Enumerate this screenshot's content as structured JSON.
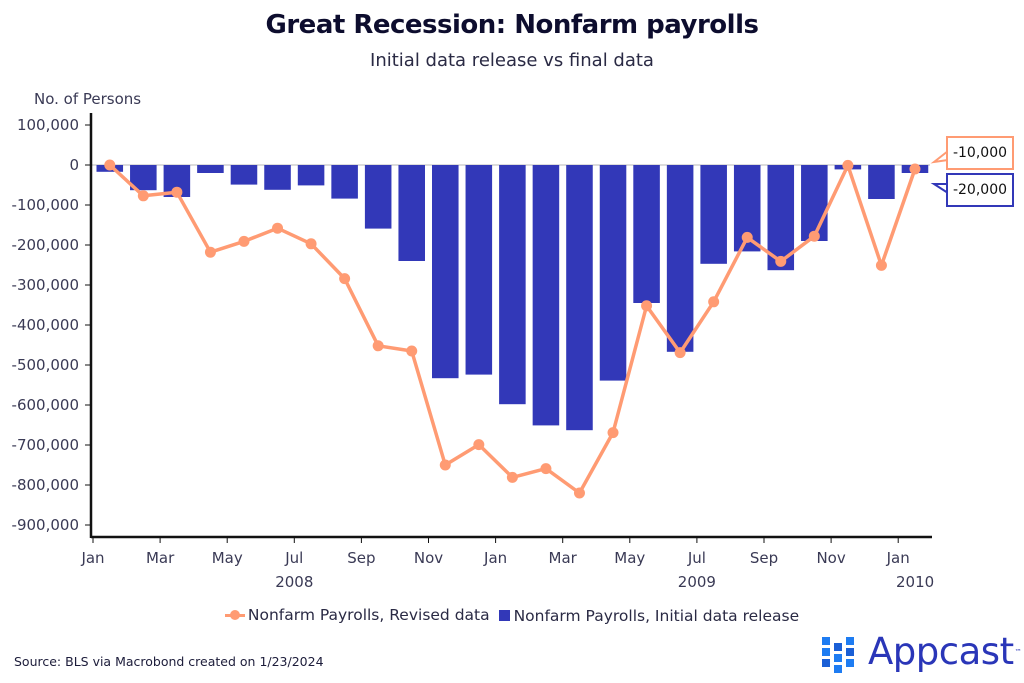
{
  "chart_data": {
    "type": "bar+line",
    "title": "Great Recession: Nonfarm payrolls",
    "subtitle": "Initial data release vs final data",
    "ylabel": "No. of Persons",
    "xlabel": "",
    "ylim": [
      -930000,
      120000
    ],
    "y_ticks": [
      100000,
      0,
      -100000,
      -200000,
      -300000,
      -400000,
      -500000,
      -600000,
      -700000,
      -800000,
      -900000
    ],
    "y_tick_labels": [
      "100,000",
      "0",
      "-100,000",
      "-200,000",
      "-300,000",
      "-400,000",
      "-500,000",
      "-600,000",
      "-700,000",
      "-800,000",
      "-900,000"
    ],
    "categories": [
      "Jan 2008",
      "Feb 2008",
      "Mar 2008",
      "Apr 2008",
      "May 2008",
      "Jun 2008",
      "Jul 2008",
      "Aug 2008",
      "Sep 2008",
      "Oct 2008",
      "Nov 2008",
      "Dec 2008",
      "Jan 2009",
      "Feb 2009",
      "Mar 2009",
      "Apr 2009",
      "May 2009",
      "Jun 2009",
      "Jul 2009",
      "Aug 2009",
      "Sep 2009",
      "Oct 2009",
      "Nov 2009",
      "Dec 2009",
      "Jan 2010"
    ],
    "x_tick_labels": [
      {
        "month_index": 0,
        "label": "Jan",
        "year": ""
      },
      {
        "month_index": 2,
        "label": "Mar",
        "year": ""
      },
      {
        "month_index": 4,
        "label": "May",
        "year": ""
      },
      {
        "month_index": 6,
        "label": "Jul",
        "year": "2008"
      },
      {
        "month_index": 8,
        "label": "Sep",
        "year": ""
      },
      {
        "month_index": 10,
        "label": "Nov",
        "year": ""
      },
      {
        "month_index": 12,
        "label": "Jan",
        "year": ""
      },
      {
        "month_index": 14,
        "label": "Mar",
        "year": ""
      },
      {
        "month_index": 16,
        "label": "May",
        "year": ""
      },
      {
        "month_index": 18,
        "label": "Jul",
        "year": "2009"
      },
      {
        "month_index": 20,
        "label": "Sep",
        "year": ""
      },
      {
        "month_index": 22,
        "label": "Nov",
        "year": ""
      },
      {
        "month_index": 24,
        "label": "Jan",
        "year": "2010"
      }
    ],
    "series": [
      {
        "name": "Nonfarm Payrolls, Revised data",
        "type": "line",
        "color": "#ff9b73",
        "values": [
          0,
          -77000,
          -68000,
          -218000,
          -191000,
          -158000,
          -197000,
          -284000,
          -452000,
          -465000,
          -750000,
          -699000,
          -781000,
          -759000,
          -820000,
          -669000,
          -352000,
          -469000,
          -342000,
          -181000,
          -241000,
          -178000,
          -1000,
          -251000,
          -10000
        ]
      },
      {
        "name": "Nonfarm Payrolls, Initial data release",
        "type": "bar",
        "color": "#3238b8",
        "values": [
          -17000,
          -63000,
          -80000,
          -20000,
          -49000,
          -62000,
          -51000,
          -84000,
          -159000,
          -240000,
          -533000,
          -524000,
          -598000,
          -651000,
          -663000,
          -539000,
          -345000,
          -467000,
          -247000,
          -216000,
          -263000,
          -190000,
          -11000,
          -85000,
          -20000
        ]
      }
    ],
    "last_value_labels": [
      {
        "series": "Nonfarm Payrolls, Revised data",
        "label": "-10,000"
      },
      {
        "series": "Nonfarm Payrolls, Initial data release",
        "label": "-20,000"
      }
    ],
    "legend_position": "bottom",
    "grid": false
  },
  "footer": {
    "source": "Source: BLS via Macrobond created on 1/23/2024",
    "brand": "Appcast",
    "brand_tm": "™"
  }
}
